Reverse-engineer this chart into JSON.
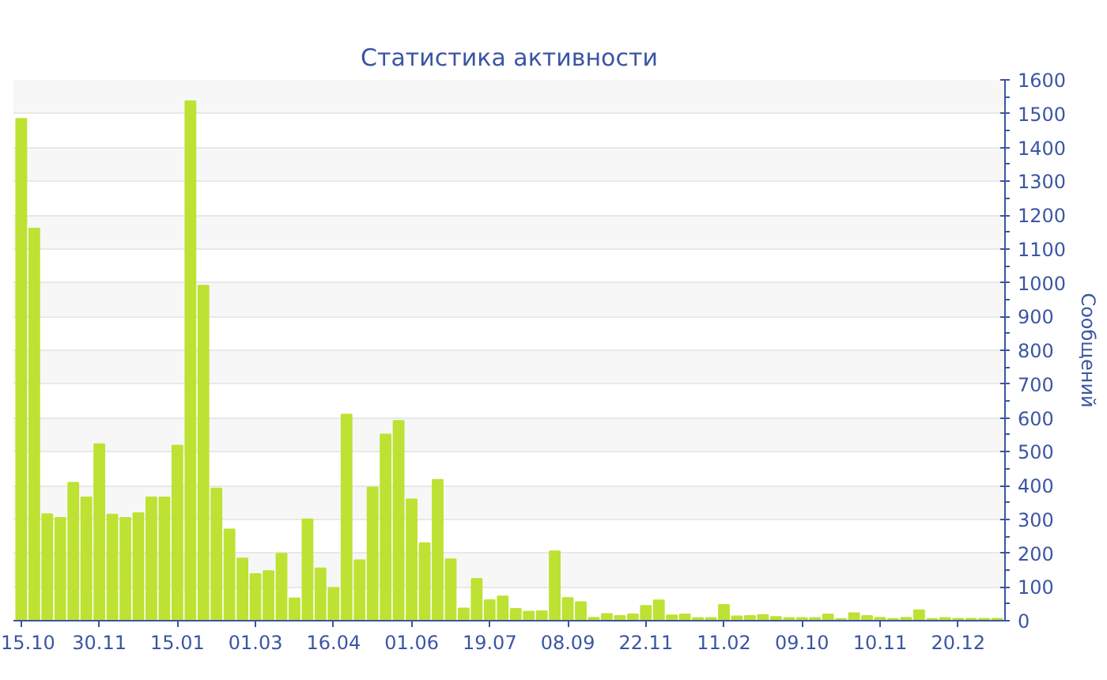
{
  "chart_data": {
    "type": "bar",
    "title": "Статистика активности",
    "ylabel": "Сообщений",
    "categories": [
      "15.10",
      null,
      null,
      null,
      null,
      null,
      "30.11",
      null,
      null,
      null,
      null,
      null,
      "15.01",
      null,
      null,
      null,
      null,
      null,
      "01.03",
      null,
      null,
      null,
      null,
      null,
      "16.04",
      null,
      null,
      null,
      null,
      null,
      "01.06",
      null,
      null,
      null,
      null,
      null,
      "19.07",
      null,
      null,
      null,
      null,
      null,
      "08.09",
      null,
      null,
      null,
      null,
      null,
      "22.11",
      null,
      null,
      null,
      null,
      null,
      "11.02",
      null,
      null,
      null,
      null,
      null,
      "09.10",
      null,
      null,
      null,
      null,
      null,
      "10.11",
      null,
      null,
      null,
      null,
      null,
      "20.12",
      null,
      null,
      null
    ],
    "values": [
      1485,
      1160,
      315,
      304,
      408,
      365,
      522,
      314,
      304,
      318,
      365,
      365,
      518,
      1537,
      991,
      391,
      270,
      184,
      138,
      147,
      198,
      66,
      300,
      155,
      97,
      610,
      179,
      394,
      551,
      591,
      359,
      229,
      417,
      182,
      36,
      124,
      61,
      72,
      35,
      27,
      28,
      205,
      67,
      55,
      9,
      20,
      14,
      19,
      44,
      60,
      16,
      19,
      8,
      8,
      47,
      13,
      14,
      17,
      11,
      8,
      8,
      8,
      19,
      5,
      22,
      14,
      9,
      5,
      9,
      31,
      5,
      8,
      6,
      6,
      6,
      6
    ],
    "color": "#bde233",
    "ylim": [
      0,
      1600
    ],
    "yticks": [
      0,
      100,
      200,
      300,
      400,
      500,
      600,
      700,
      800,
      900,
      1000,
      1100,
      1200,
      1300,
      1400,
      1500,
      1600
    ],
    "grid": "y"
  }
}
